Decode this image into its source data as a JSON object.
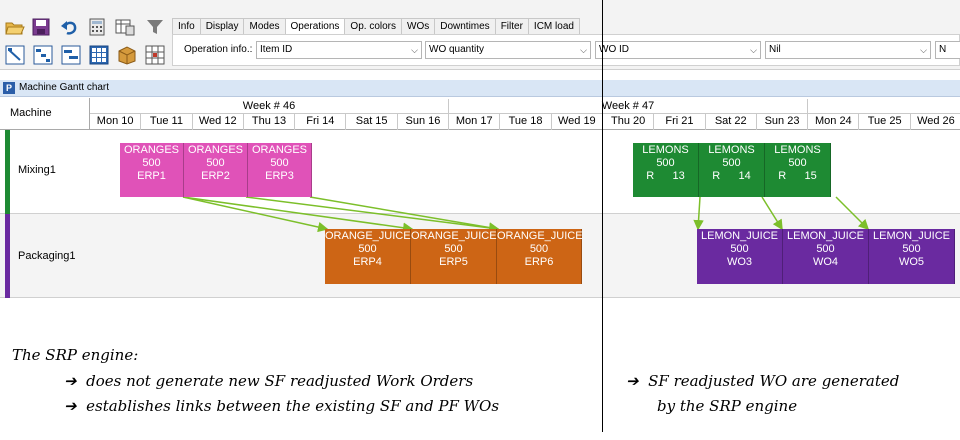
{
  "toolbar": {
    "tabs": [
      {
        "label": "Info",
        "active": false
      },
      {
        "label": "Display",
        "active": false
      },
      {
        "label": "Modes",
        "active": false
      },
      {
        "label": "Operations",
        "active": true
      },
      {
        "label": "Op. colors",
        "active": false
      },
      {
        "label": "WOs",
        "active": false
      },
      {
        "label": "Downtimes",
        "active": false
      },
      {
        "label": "Filter",
        "active": false
      },
      {
        "label": "ICM load",
        "active": false
      }
    ],
    "operation_info_label": "Operation info.:",
    "combos": [
      "Item ID",
      "WO quantity",
      "WO ID",
      "Nil",
      "N"
    ]
  },
  "gantt": {
    "window_title": "Machine Gantt chart",
    "machine_header": "Machine",
    "weeks": [
      "Week # 46",
      "Week # 47"
    ],
    "days": [
      "Mon 10",
      "Tue 11",
      "Wed 12",
      "Thu 13",
      "Fri 14",
      "Sat 15",
      "Sun 16",
      "Mon 17",
      "Tue 18",
      "Wed 19",
      "Thu 20",
      "Fri 21",
      "Sat 22",
      "Sun 23",
      "Mon 24",
      "Tue 25",
      "Wed 26"
    ],
    "machines": [
      {
        "name": "Mixing1",
        "color": "#1e8a33"
      },
      {
        "name": "Packaging1",
        "color": "#6a2aa0"
      }
    ],
    "operations": [
      {
        "id": "o1",
        "item": "ORANGES",
        "qty": "500",
        "wo": "ERP1",
        "machine": 0,
        "color": "#e052b8"
      },
      {
        "id": "o2",
        "item": "ORANGES",
        "qty": "500",
        "wo": "ERP2",
        "machine": 0,
        "color": "#e052b8"
      },
      {
        "id": "o3",
        "item": "ORANGES",
        "qty": "500",
        "wo": "ERP3",
        "machine": 0,
        "color": "#e052b8"
      },
      {
        "id": "o4",
        "item": "ORANGE_JUICE",
        "qty": "500",
        "wo": "ERP4",
        "machine": 1,
        "color": "#cd6515"
      },
      {
        "id": "o5",
        "item": "ORANGE_JUICE",
        "qty": "500",
        "wo": "ERP5",
        "machine": 1,
        "color": "#cd6515"
      },
      {
        "id": "o6",
        "item": "ORANGE_JUICE",
        "qty": "500",
        "wo": "ERP6",
        "machine": 1,
        "color": "#cd6515"
      },
      {
        "id": "o7",
        "item": "LEMONS",
        "qty": "500",
        "wo": "R      13",
        "machine": 0,
        "color": "#1e8a33"
      },
      {
        "id": "o8",
        "item": "LEMONS",
        "qty": "500",
        "wo": "R      14",
        "machine": 0,
        "color": "#1e8a33"
      },
      {
        "id": "o9",
        "item": "LEMONS",
        "qty": "500",
        "wo": "R      15",
        "machine": 0,
        "color": "#1e8a33"
      },
      {
        "id": "o10",
        "item": "LEMON_JUICE",
        "qty": "500",
        "wo": "WO3",
        "machine": 1,
        "color": "#6a2aa0"
      },
      {
        "id": "o11",
        "item": "LEMON_JUICE",
        "qty": "500",
        "wo": "WO4",
        "machine": 1,
        "color": "#6a2aa0"
      },
      {
        "id": "o12",
        "item": "LEMON_JUICE",
        "qty": "500",
        "wo": "WO5",
        "machine": 1,
        "color": "#6a2aa0"
      }
    ],
    "link_color": "#7cbf2a"
  },
  "captions": {
    "left_title": "The SRP engine:",
    "left_points": [
      "does not generate new SF readjusted Work Orders",
      "establishes links between the existing SF and PF WOs"
    ],
    "right_point": "SF readjusted WO are generated by the SRP engine",
    "right_line1": "SF readjusted WO are generated",
    "right_line2": "by the SRP engine",
    "arrow_glyph": "➔"
  }
}
